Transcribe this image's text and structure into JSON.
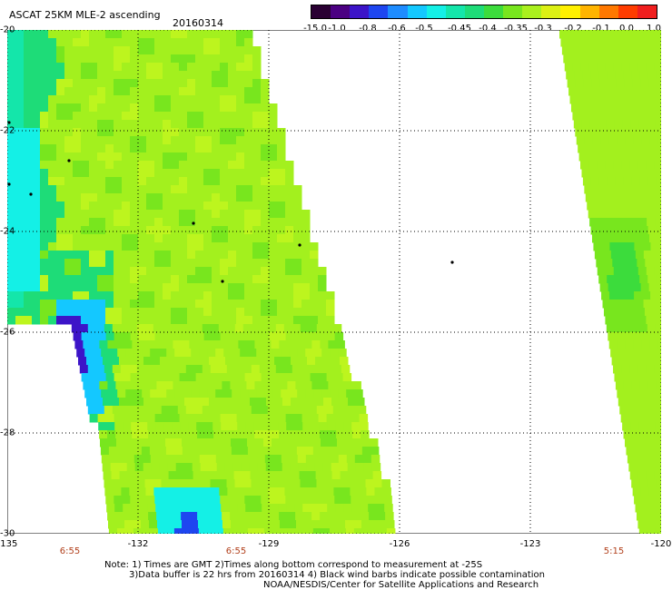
{
  "header": {
    "title": "ASCAT 25KM MLE-2 ascending",
    "date": "20160314"
  },
  "colorbar": {
    "colors": [
      "#2a0033",
      "#4b0082",
      "#3c14c8",
      "#1e46f0",
      "#1e8cff",
      "#14c8ff",
      "#14f0e6",
      "#14e6aa",
      "#1edc78",
      "#3cdc3c",
      "#78e61e",
      "#aaf01e",
      "#dcf014",
      "#fff000",
      "#ffb400",
      "#ff7800",
      "#ff3c00",
      "#f01e1e"
    ],
    "labels": [
      "-15.0",
      "-1.0",
      "-0.8",
      "-0.6",
      "-0.5",
      "-0.45",
      "-0.4",
      "-0.35",
      "-0.3",
      "-0.2",
      "-0.1",
      "0.0",
      "1.0"
    ]
  },
  "map": {
    "lon_range": [
      -135,
      -120
    ],
    "lat_range": [
      -30,
      -20
    ],
    "y_ticks": [
      "-20",
      "-22",
      "-24",
      "-26",
      "-28",
      "-30"
    ],
    "x_ticks": [
      "-135",
      "-132",
      "-129",
      "-126",
      "-123",
      "-120"
    ],
    "time_labels": [
      "6:55",
      "6:55",
      "5:15"
    ]
  },
  "notes": {
    "line1": "Note: 1) Times are GMT 2)Times along bottom correspond to measurement at -25S",
    "line2": "3)Data buffer is 22 hrs from 20160314 4) Black wind barbs indicate possible contamination",
    "line3": "NOAA/NESDIS/Center for Satellite Applications and Research"
  }
}
